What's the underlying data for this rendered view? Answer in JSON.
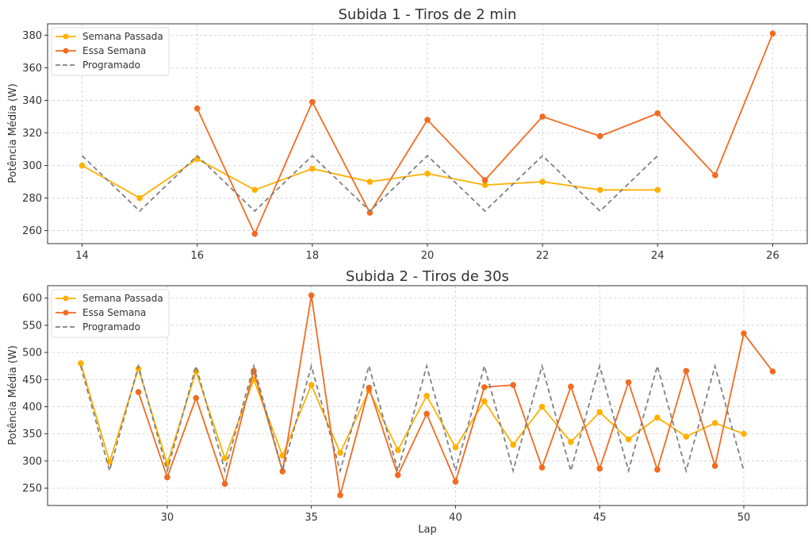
{
  "chart_data": [
    {
      "type": "line",
      "title": "Subida 1 - Tiros de 2 min",
      "xlabel": "",
      "ylabel": "Potência Média (W)",
      "xlim": [
        13.4,
        26.6
      ],
      "ylim": [
        252,
        387
      ],
      "xticks": [
        14,
        16,
        18,
        20,
        22,
        24,
        26
      ],
      "yticks": [
        260,
        280,
        300,
        320,
        340,
        360,
        380
      ],
      "grid": true,
      "legend": "top-left",
      "series": [
        {
          "name": "Semana Passada",
          "color": "#FFB000",
          "style": "solid-marker",
          "x": [
            14,
            15,
            16,
            17,
            18,
            19,
            20,
            21,
            22,
            23,
            24
          ],
          "y": [
            300,
            280,
            304,
            285,
            298,
            290,
            295,
            288,
            290,
            285,
            285
          ]
        },
        {
          "name": "Essa Semana",
          "color": "#F26B21",
          "style": "solid-marker",
          "x": [
            16,
            17,
            18,
            19,
            20,
            21,
            22,
            23,
            24,
            25,
            26
          ],
          "y": [
            335,
            258,
            339,
            271,
            328,
            291,
            330,
            318,
            332,
            294,
            381
          ]
        },
        {
          "name": "Programado",
          "color": "#808080",
          "style": "dashed",
          "x": [
            14,
            15,
            16,
            17,
            18,
            19,
            20,
            21,
            22,
            23,
            24
          ],
          "y": [
            306,
            272,
            306,
            272,
            306,
            272,
            306,
            272,
            306,
            272,
            306
          ]
        }
      ]
    },
    {
      "type": "line",
      "title": "Subida 2 - Tiros de 30s",
      "xlabel": "Lap",
      "ylabel": "Potência Média (W)",
      "xlim": [
        25.85,
        52.2
      ],
      "ylim": [
        218,
        623
      ],
      "xticks": [
        30,
        35,
        40,
        45,
        50
      ],
      "yticks": [
        250,
        300,
        350,
        400,
        450,
        500,
        550,
        600
      ],
      "grid": true,
      "legend": "top-left",
      "series": [
        {
          "name": "Semana Passada",
          "color": "#FFB000",
          "style": "solid-marker",
          "x": [
            27,
            28,
            29,
            30,
            31,
            32,
            33,
            34,
            35,
            36,
            37,
            38,
            39,
            40,
            41,
            42,
            43,
            44,
            45,
            46,
            47,
            48,
            49,
            50
          ],
          "y": [
            480,
            298,
            470,
            295,
            465,
            305,
            450,
            310,
            440,
            315,
            430,
            320,
            420,
            325,
            410,
            330,
            400,
            335,
            390,
            340,
            380,
            345,
            370,
            350
          ]
        },
        {
          "name": "Essa Semana",
          "color": "#F26B21",
          "style": "solid-marker",
          "x": [
            29,
            30,
            31,
            32,
            33,
            34,
            35,
            36,
            37,
            38,
            39,
            40,
            41,
            42,
            43,
            44,
            45,
            46,
            47,
            48,
            49,
            50,
            51
          ],
          "y": [
            427,
            270,
            416,
            258,
            466,
            281,
            605,
            237,
            435,
            274,
            387,
            262,
            436,
            440,
            288,
            437,
            286,
            445,
            284,
            466,
            291,
            535,
            465
          ]
        },
        {
          "name": "Programado",
          "color": "#808080",
          "style": "dashed",
          "x": [
            27,
            28,
            29,
            30,
            31,
            32,
            33,
            34,
            35,
            36,
            37,
            38,
            39,
            40,
            41,
            42,
            43,
            44,
            45,
            46,
            47,
            48,
            49,
            50
          ],
          "y": [
            475,
            282,
            475,
            282,
            475,
            282,
            475,
            282,
            475,
            282,
            475,
            282,
            475,
            282,
            475,
            282,
            475,
            282,
            475,
            282,
            475,
            282,
            475,
            282
          ]
        }
      ]
    }
  ]
}
